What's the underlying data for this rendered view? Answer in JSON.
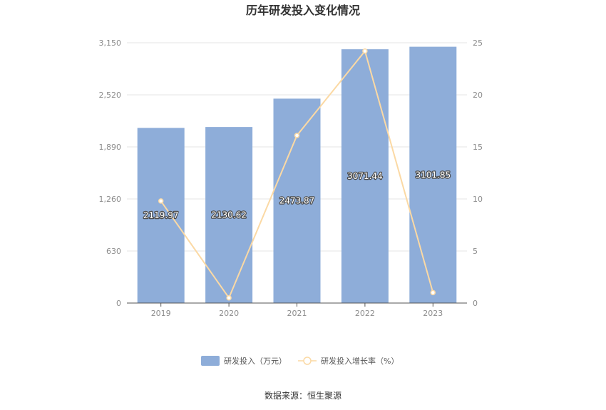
{
  "title": "历年研发投入变化情况",
  "source": "数据来源：恒生聚源",
  "colors": {
    "bar": "#8eadd9",
    "line": "#fbd9a4",
    "grid": "#e6e6e6",
    "axis": "#555555"
  },
  "chart_data": {
    "type": "bar",
    "categories": [
      "2019",
      "2020",
      "2021",
      "2022",
      "2023"
    ],
    "series": [
      {
        "name": "研发投入（万元）",
        "type": "bar",
        "axis": "left",
        "values": [
          2119.97,
          2130.62,
          2473.87,
          3071.44,
          3101.85
        ],
        "labels": [
          "2119.97",
          "2130.62",
          "2473.87",
          "3071.44",
          "3101.85"
        ]
      },
      {
        "name": "研发投入增长率（%）",
        "type": "line",
        "axis": "right",
        "values": [
          9.8,
          0.5,
          16.1,
          24.2,
          1.0
        ]
      }
    ],
    "y_left": {
      "min": 0,
      "max": 3150,
      "ticks": [
        "0",
        "630",
        "1,260",
        "1,890",
        "2,520",
        "3,150"
      ]
    },
    "y_right": {
      "min": 0,
      "max": 25,
      "ticks": [
        "0",
        "5",
        "10",
        "15",
        "20",
        "25"
      ]
    },
    "grid": true,
    "legend_position": "bottom"
  }
}
